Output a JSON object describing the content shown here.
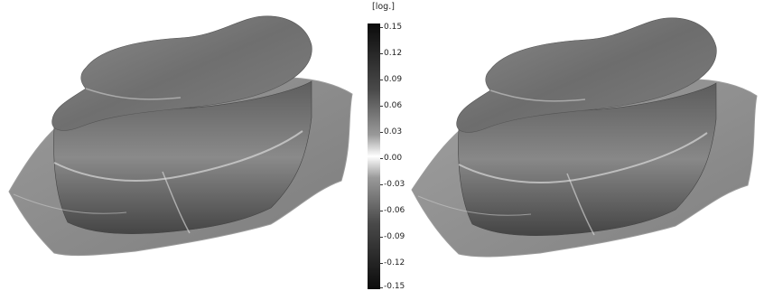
{
  "colorbar": {
    "unit": "[log.]",
    "ticks": [
      "0.15",
      "0.12",
      "0.09",
      "0.06",
      "0.03",
      "0.00",
      "-0.03",
      "-0.06",
      "-0.09",
      "-0.12",
      "-0.15"
    ]
  },
  "colors": {
    "max": "#0b0b0b",
    "mid": "#ffffff",
    "surface": "#7a7a7a"
  }
}
